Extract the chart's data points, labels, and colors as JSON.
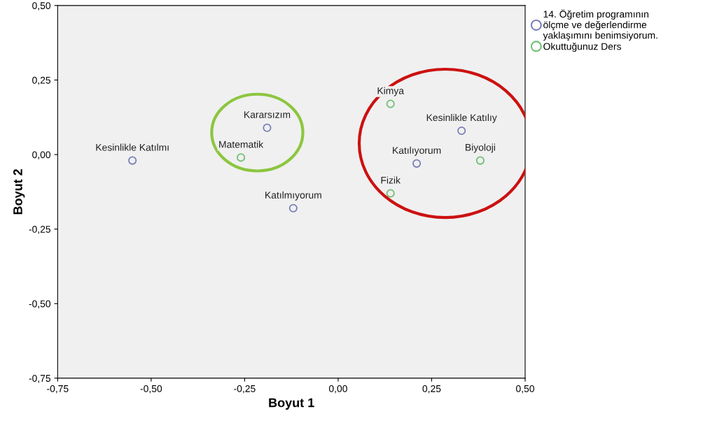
{
  "chart_data": {
    "type": "scatter",
    "xlabel": "Boyut 1",
    "ylabel": "Boyut 2",
    "xlim": [
      -0.75,
      0.5
    ],
    "ylim": [
      -0.75,
      0.5
    ],
    "xticks": [
      {
        "value": -0.75,
        "label": "-0,75"
      },
      {
        "value": -0.5,
        "label": "-0,50"
      },
      {
        "value": -0.25,
        "label": "-0,25"
      },
      {
        "value": 0,
        "label": "0,00"
      },
      {
        "value": 0.25,
        "label": "0,25"
      },
      {
        "value": 0.5,
        "label": "0,50"
      }
    ],
    "yticks": [
      {
        "value": -0.75,
        "label": "-0,75"
      },
      {
        "value": -0.5,
        "label": "-0,50"
      },
      {
        "value": -0.25,
        "label": "-0,25"
      },
      {
        "value": 0,
        "label": "0,00"
      },
      {
        "value": 0.25,
        "label": "0,25"
      },
      {
        "value": 0.5,
        "label": "0,50"
      }
    ],
    "series": [
      {
        "name": "14. Öğretim programının\nölçme ve değerlendirme\nyaklaşımını benimsiyorum.",
        "color": "#7a7fb8",
        "x": [
          -0.55,
          -0.19,
          -0.12,
          0.21,
          0.33
        ],
        "values": [
          -0.02,
          0.09,
          -0.18,
          -0.03,
          0.08
        ]
      },
      {
        "name": "Okuttuğunuz Ders",
        "color": "#6fbf73",
        "x": [
          -0.26,
          0.14,
          0.14,
          0.38
        ],
        "values": [
          -0.01,
          0.17,
          -0.13,
          -0.02
        ]
      }
    ],
    "annotations": [
      {
        "text": "Kesinlikle Katılmı",
        "x": -0.55,
        "y": -0.02
      },
      {
        "text": "Kararsızım",
        "x": -0.19,
        "y": 0.09
      },
      {
        "text": "Katılmıyorum",
        "x": -0.12,
        "y": -0.18
      },
      {
        "text": "Katılıyorum",
        "x": 0.21,
        "y": -0.03
      },
      {
        "text": "Kesinlikle Katılıy",
        "x": 0.33,
        "y": 0.08
      },
      {
        "text": "Matematik",
        "x": -0.26,
        "y": -0.01
      },
      {
        "text": "Kimya",
        "x": 0.14,
        "y": 0.17
      },
      {
        "text": "Fizik",
        "x": 0.14,
        "y": -0.13
      },
      {
        "text": "Biyoloji",
        "x": 0.38,
        "y": -0.02
      }
    ],
    "marker": "circle",
    "legend": "top right",
    "grid": false
  }
}
